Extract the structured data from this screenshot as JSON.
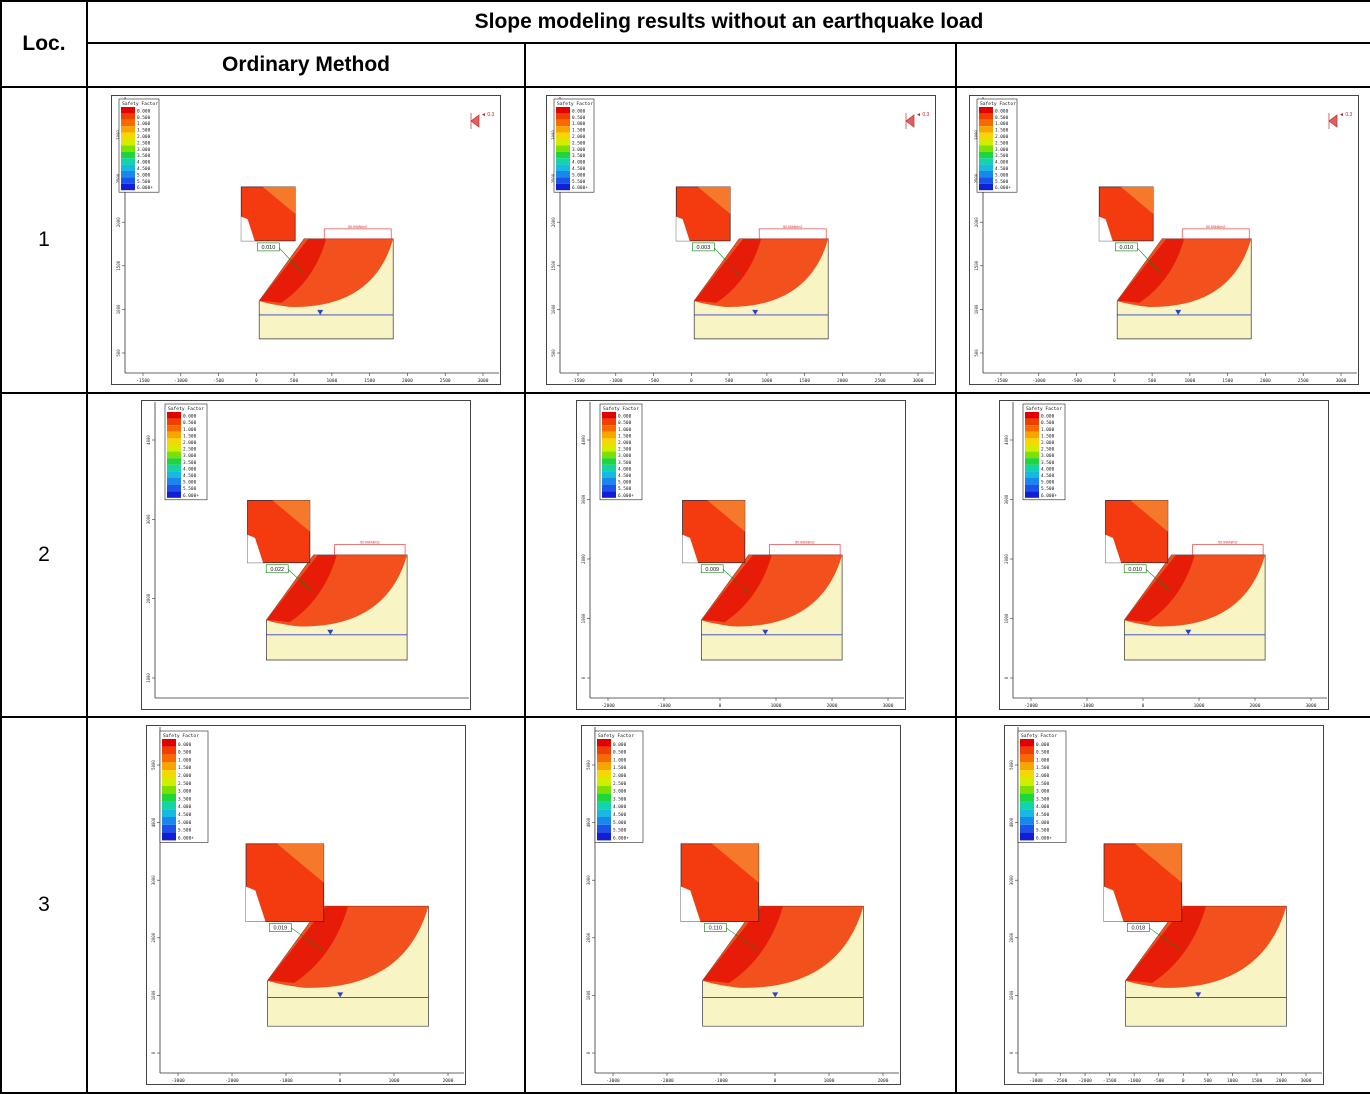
{
  "table": {
    "corner_label": "Loc.",
    "main_title": "Slope modeling results without an earthquake load",
    "method_headers": [
      "Ordinary Method",
      "",
      ""
    ]
  },
  "legend": {
    "title": "Safety Factor",
    "entries": [
      "0.000",
      "0.500",
      "1.000",
      "1.500",
      "2.000",
      "2.500",
      "3.000",
      "3.500",
      "4.000",
      "4.500",
      "5.000",
      "5.500",
      "6.000+"
    ],
    "colors": [
      "#e30000",
      "#f04000",
      "#f86a00",
      "#f9a500",
      "#f5d800",
      "#d2ee00",
      "#7ee000",
      "#1ed53a",
      "#13d3a8",
      "#18b8e0",
      "#1888ee",
      "#1b52e8",
      "#0f1fd6"
    ]
  },
  "fill_colors": {
    "slope": "#f9f4c4",
    "box": "#f43b10",
    "surface": "#f06020",
    "water": "#3040c8"
  },
  "rows": [
    {
      "loc": "1",
      "plots": [
        {
          "fs": "0.010",
          "load": "50.00kN/m2",
          "xticks": [
            "-1500",
            "-1000",
            "-500",
            "0",
            "500",
            "1000",
            "1500",
            "2000",
            "2500",
            "3000"
          ],
          "yticks": [
            "3000",
            "2500",
            "2000",
            "1500",
            "1000",
            "500"
          ],
          "eq": "0.3"
        },
        {
          "fs": "0.003",
          "load": "50.00kN/m2",
          "xticks": [
            "-1500",
            "-1000",
            "-500",
            "0",
            "500",
            "1000",
            "1500",
            "2000",
            "2500",
            "3000"
          ],
          "yticks": [
            "3000",
            "2500",
            "2000",
            "1500",
            "1000",
            "500"
          ],
          "eq": "0.3"
        },
        {
          "fs": "0.010",
          "load": "50.00kN/m2",
          "xticks": [
            "-1500",
            "-1000",
            "-500",
            "0",
            "500",
            "1000",
            "1500",
            "2000",
            "2500",
            "3000"
          ],
          "yticks": [
            "3000",
            "2500",
            "2000",
            "1500",
            "1000",
            "500"
          ],
          "eq": "0.3"
        }
      ]
    },
    {
      "loc": "2",
      "plots": [
        {
          "fs": "0.022",
          "load": "50.00kN/m2",
          "xticks": [],
          "yticks": [
            "4000",
            "3000",
            "2000",
            "1000"
          ],
          "eq": ""
        },
        {
          "fs": "0.009",
          "load": "50.00kN/m2",
          "xticks": [
            "-2000",
            "-1000",
            "0",
            "1000",
            "2000",
            "3000"
          ],
          "yticks": [
            "4000",
            "3000",
            "2000",
            "1000",
            "0"
          ],
          "eq": ""
        },
        {
          "fs": "0.010",
          "load": "50.00kN/m2",
          "xticks": [
            "-2000",
            "-1000",
            "0",
            "1000",
            "2000",
            "3000"
          ],
          "yticks": [
            "4000",
            "3000",
            "2000",
            "1000",
            "0"
          ],
          "eq": ""
        }
      ]
    },
    {
      "loc": "3",
      "plots": [
        {
          "fs": "0.019",
          "load": "",
          "xticks": [
            "-3000",
            "-2000",
            "-1000",
            "0",
            "1000",
            "2000"
          ],
          "yticks": [
            "5000",
            "4000",
            "3000",
            "2000",
            "1000",
            "0"
          ],
          "eq": ""
        },
        {
          "fs": "0.110",
          "load": "",
          "xticks": [
            "-3000",
            "-2000",
            "-1000",
            "0",
            "1000",
            "2000"
          ],
          "yticks": [
            "5000",
            "4000",
            "3000",
            "2000",
            "1000",
            "0"
          ],
          "eq": ""
        },
        {
          "fs": "0.018",
          "load": "",
          "xticks": [
            "-3000",
            "-2500",
            "-2000",
            "-1500",
            "-1000",
            "-500",
            "0",
            "500",
            "1000",
            "1500",
            "2000",
            "3000"
          ],
          "yticks": [
            "5000",
            "4000",
            "3000",
            "2000",
            "1000",
            "0"
          ],
          "eq": ""
        }
      ]
    }
  ]
}
